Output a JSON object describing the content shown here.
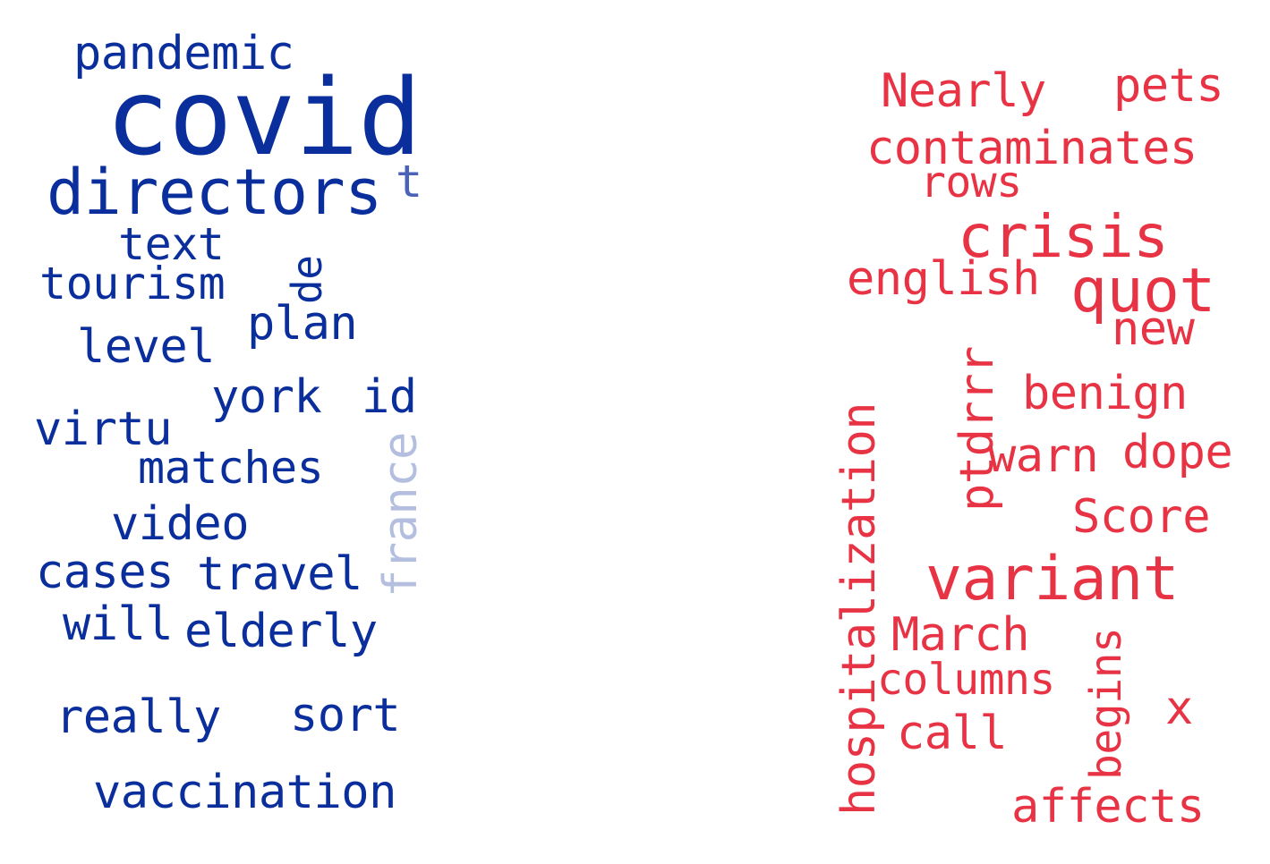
{
  "colors": {
    "left_word": "#0a2e9c",
    "left_word_faded": "#4a63b8",
    "left_word_light": "#b4bfe0",
    "right_word": "#e83345",
    "background": "#ffffff"
  },
  "left_cloud": {
    "words": {
      "pandemic": "pandemic",
      "covid": "covid",
      "directors": "directors",
      "t": "t",
      "text": "text",
      "tourism": "tourism",
      "de": "de",
      "plan": "plan",
      "level": "level",
      "york": "york",
      "id": "id",
      "virtu": "virtu",
      "matches": "matches",
      "france": "france",
      "video": "video",
      "cases": "cases",
      "travel": "travel",
      "will": "will",
      "elderly": "elderly",
      "really": "really",
      "sort": "sort",
      "vaccination": "vaccination"
    }
  },
  "right_cloud": {
    "words": {
      "nearly": "Nearly",
      "pets": "pets",
      "contaminates": "contaminates",
      "rows": "rows",
      "crisis": "crisis",
      "english": "english",
      "quot": "quot",
      "new": "new",
      "ptdrrr": "ptdrrr",
      "benign": "benign",
      "hospitalization": "hospitalization",
      "warn": "warn",
      "dope": "dope",
      "score": "Score",
      "variant": "variant",
      "march": "March",
      "begins": "begins",
      "columns": "columns",
      "x": "x",
      "call": "call",
      "affects": "affects"
    }
  }
}
